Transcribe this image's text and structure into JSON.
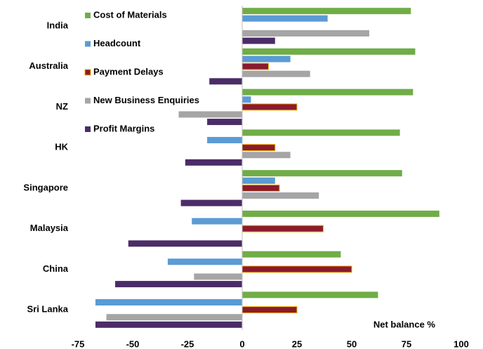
{
  "chart_data": {
    "type": "barh",
    "categories": [
      "India",
      "Australia",
      "NZ",
      "HK",
      "Singapore",
      "Malaysia",
      "China",
      "Sri Lanka"
    ],
    "series": [
      {
        "name": "Cost of Materials",
        "color": "#70ad47",
        "values": [
          77,
          79,
          78,
          72,
          73,
          90,
          45,
          62
        ]
      },
      {
        "name": "Headcount",
        "color": "#5b9bd5",
        "values": [
          39,
          22,
          4,
          -16,
          15,
          -23,
          -34,
          -67
        ]
      },
      {
        "name": "Payment Delays",
        "color": "#8b1a2e",
        "edgecolor": "#f0b400",
        "values": [
          null,
          12,
          25,
          15,
          17,
          37,
          50,
          25
        ]
      },
      {
        "name": "New Business Enquiries",
        "color": "#a5a5a5",
        "values": [
          58,
          31,
          -29,
          22,
          35,
          null,
          -22,
          -62
        ]
      },
      {
        "name": "Profit Margins",
        "color": "#4b2c68",
        "values": [
          15,
          -15,
          -16,
          -26,
          -28,
          -52,
          -58,
          -67
        ]
      }
    ],
    "xlabel": "Net balance %",
    "xlim": [
      -75,
      100
    ],
    "xticks": [
      -75,
      -50,
      -25,
      0,
      25,
      50,
      75,
      100
    ],
    "grid": false,
    "legend": "upper left"
  }
}
